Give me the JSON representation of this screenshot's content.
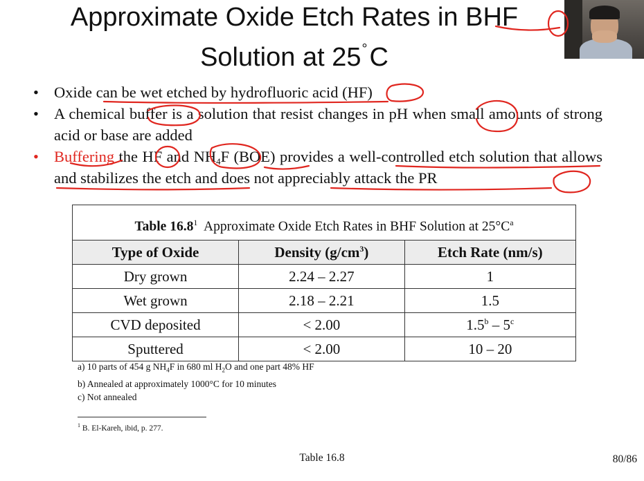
{
  "slide": {
    "title_line1": "Approximate Oxide Etch Rates in BHF",
    "title_line2a": "Solution at 25",
    "title_deg": "°",
    "title_line2b": "C",
    "bullets": {
      "b1": "Oxide can be wet etched by hydrofluoric acid (HF)",
      "b2": "A chemical buffer is a solution that resist changes in pH when small amounts of strong acid or base are added",
      "b3_red": "Buffering",
      "b3_a": " the HF and NH",
      "b3_sub": "4",
      "b3_b": "F (BOE) provides a well-controlled etch solution that allows and stabilizes the etch and does not appreciably attack the PR"
    },
    "table": {
      "caption_label": "Table 16.8",
      "caption_sup": "1",
      "caption_text": "Approximate Oxide Etch Rates in BHF Solution at 25°C",
      "caption_sup2": "a",
      "headers": {
        "type": "Type of Oxide",
        "density_a": "Density (g/cm",
        "density_sup": "3",
        "density_b": ")",
        "etch": "Etch Rate (nm/s)"
      },
      "rows": [
        {
          "type": "Dry grown",
          "density": "2.24 – 2.27",
          "etch": "1"
        },
        {
          "type": "Wet grown",
          "density": "2.18 – 2.21",
          "etch": "1.5"
        },
        {
          "type": "CVD deposited",
          "density": "< 2.00",
          "etch_a": "1.5",
          "etch_sup1": "b",
          "etch_mid": " – 5",
          "etch_sup2": "c"
        },
        {
          "type": "Sputtered",
          "density": "< 2.00",
          "etch": "10 – 20"
        }
      ]
    },
    "notes": {
      "a_1": "a) 10 parts of 454 g NH",
      "a_sub1": "4",
      "a_2": "F in 680 ml H",
      "a_sub2": "2",
      "a_3": "O and one part 48% HF",
      "b": "b) Annealed at approximately 1000°C for 10 minutes",
      "c": "c) Not annealed"
    },
    "reference_sup": "1",
    "reference_text": " B. El-Kareh, ibid, p. 277.",
    "footer_center": "Table 16.8",
    "page_number": "80/86",
    "accent_color": "#e0261f"
  }
}
